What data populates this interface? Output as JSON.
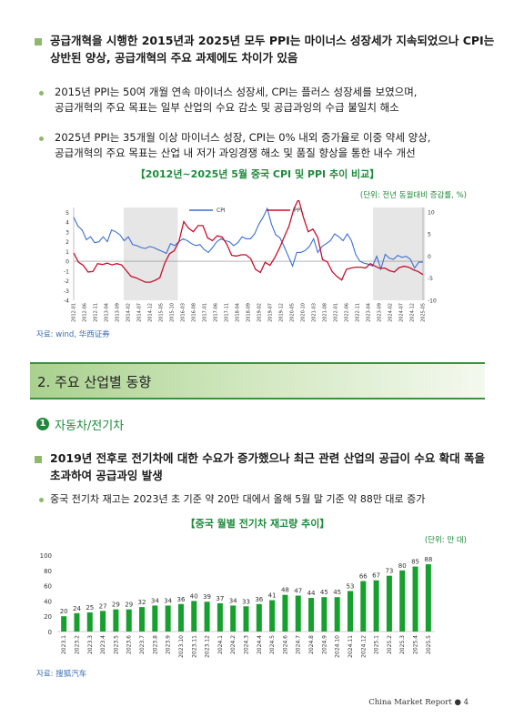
{
  "section1": {
    "heading_line1": "공급개혁을 시행한 2015년과 2025년 모두 PPI는 마이너스 성장세가 지속되었으나 CPI는",
    "heading_line2": "상반된 양상, 공급개혁의 주요 과제에도 차이가 있음",
    "bullet1_line1": "2015년 PPI는 50여 개월 연속 마이너스 성장세, CPI는 플러스 성장세를 보였으며,",
    "bullet1_line2": "공급개혁의 주요 목표는 일부 산업의 수요 감소 및 공급과잉의 수급 불일치 해소",
    "bullet2_line1": "2025년 PPI는 35개월 이상 마이너스 성장, CPI는 0% 내외 증가율로 이중 약세 양상,",
    "bullet2_line2": "공급개혁의 주요 목표는 산업 내 저가 과잉경쟁 해소 및 품질 향상을 통한 내수 개선"
  },
  "chart1": {
    "title": "【2012년~2025년 5월 중국 CPI 및 PPI 추이 비교】",
    "unit": "(단위: 전년 동월대비 증감률, %)",
    "source": "자료: wind, 华西证券"
  },
  "chart_data": [
    {
      "type": "line",
      "series": [
        {
          "name": "CPI",
          "axis": "left",
          "color": "#3b6fd4",
          "values": [
            4.5,
            3.6,
            3.2,
            2.2,
            2.5,
            1.9,
            2.0,
            2.5,
            2.0,
            3.2,
            3.0,
            2.7,
            2.1,
            2.5,
            1.7,
            1.6,
            1.4,
            1.3,
            1.5,
            1.4,
            1.2,
            1.0,
            0.8,
            1.8,
            1.6,
            2.0,
            2.3,
            2.1,
            1.8,
            1.6,
            1.7,
            1.2,
            0.9,
            1.4,
            2.0,
            2.3,
            2.1,
            2.0,
            1.6,
            1.9,
            2.5,
            2.3,
            2.3,
            2.8,
            3.8,
            4.5,
            5.4,
            3.8,
            2.7,
            2.4,
            1.5,
            0.5,
            -0.5,
            0.9,
            0.9,
            1.1,
            1.5,
            2.3,
            0.9,
            1.5,
            1.8,
            2.1,
            2.8,
            2.5,
            2.1,
            2.8,
            2.1,
            0.7,
            0.0,
            -0.2,
            -0.3,
            -0.5,
            0.5,
            -0.8,
            0.7,
            0.3,
            0.2,
            0.6,
            0.4,
            0.5,
            0.2,
            -0.7,
            -0.1,
            -0.1
          ]
        },
        {
          "name": "PPI",
          "axis": "right",
          "color": "#c8102e",
          "values": [
            0.7,
            -1.4,
            -2.1,
            -3.6,
            -3.5,
            -1.7,
            -1.9,
            -1.6,
            -2.0,
            -1.7,
            -2.0,
            -3.3,
            -4.6,
            -4.9,
            -5.4,
            -5.9,
            -5.9,
            -5.5,
            -4.9,
            -1.7,
            0.5,
            1.2,
            3.3,
            7.8,
            6.3,
            5.5,
            6.9,
            6.9,
            4.1,
            3.5,
            4.6,
            4.3,
            2.7,
            0.2,
            0.0,
            0.3,
            0.3,
            -0.6,
            -3.0,
            -3.7,
            -1.4,
            -2.1,
            -0.4,
            1.8,
            4.4,
            6.8,
            10.7,
            12.9,
            8.8,
            5.5,
            6.1,
            4.2,
            -0.8,
            -1.3,
            -3.5,
            -4.6,
            -5.4,
            -3.0,
            -2.7,
            -2.5,
            -2.5,
            -2.7,
            -1.7,
            -2.3,
            -2.8,
            -2.7,
            -3.3,
            -3.6,
            -2.6,
            -2.3,
            -2.5,
            -3.1,
            -3.5,
            -4.2
          ],
          "start_index": 0
        }
      ],
      "left_axis": {
        "ticks": [
          5,
          4,
          3,
          2,
          1,
          0,
          -1,
          -2,
          -3,
          -4
        ],
        "ylim": [
          -4,
          5.5
        ]
      },
      "right_axis": {
        "ticks": [
          10,
          5,
          0,
          -5,
          -10
        ],
        "ylim": [
          -10,
          11
        ]
      },
      "x_tick_labels": [
        "2012-01",
        "2012-06",
        "2012-11",
        "2013-04",
        "2013-09",
        "2014-02",
        "2014-07",
        "2014-12",
        "2015-05",
        "2015-10",
        "2016-03",
        "2016-08",
        "2017-01",
        "2017-06",
        "2017-11",
        "2018-04",
        "2018-09",
        "2019-02",
        "2019-07",
        "2019-12",
        "2020-05",
        "2020-10",
        "2021-03",
        "2021-08",
        "2022-01",
        "2022-06",
        "2022-11",
        "2023-04",
        "2023-09",
        "2024-02",
        "2024-07",
        "2024-12",
        "2025-05"
      ],
      "shaded_periods": [
        [
          2013.92,
          2016.0
        ],
        [
          2023.5,
          2025.5
        ]
      ],
      "legend": "top-center"
    },
    {
      "type": "bar",
      "categories": [
        "2023.1",
        "2023.2",
        "2023.3",
        "2023.4",
        "2023.5",
        "2023.6",
        "2023.7",
        "2023.8",
        "2023.9",
        "2023.10",
        "2023.11",
        "2023.12",
        "2024.1",
        "2024.2",
        "2024.3",
        "2024.4",
        "2024.5",
        "2024.6",
        "2024.7",
        "2024.8",
        "2024.9",
        "2024.10",
        "2024.11",
        "2024.12",
        "2025.1",
        "2025.2",
        "2025.3",
        "2025.4",
        "2025.5"
      ],
      "values": [
        20,
        24,
        25,
        27,
        29,
        29,
        32,
        34,
        34,
        36,
        40,
        39,
        37,
        34,
        33,
        36,
        41,
        48,
        47,
        44,
        45,
        45,
        53,
        66,
        67,
        73,
        80,
        85,
        88
      ],
      "ylim": [
        0,
        100
      ],
      "y_ticks": [
        0,
        20,
        40,
        60,
        80,
        100
      ],
      "color": "#16a02e"
    }
  ],
  "section2": {
    "title": "2. 주요 산업별 동향",
    "sub_number": "1",
    "sub_title": "자동차/전기차",
    "heading_line1": "2019년 전후로 전기차에 대한 수요가 증가했으나 최근 관련 산업의 공급이 수요 확대 폭을",
    "heading_line2": "초과하여 공급과잉 발생",
    "bullet1": "중국 전기차 재고는 2023년 초 기준 약 20만 대에서 올해 5월 말 기준 약 88만 대로 증가"
  },
  "chart2": {
    "title": "【중국 월별 전기차 재고량 추이】",
    "unit": "(단위: 만 대)",
    "source": "자료: 搜狐汽车"
  },
  "footer": {
    "label": "China Market Report",
    "page": "4"
  }
}
